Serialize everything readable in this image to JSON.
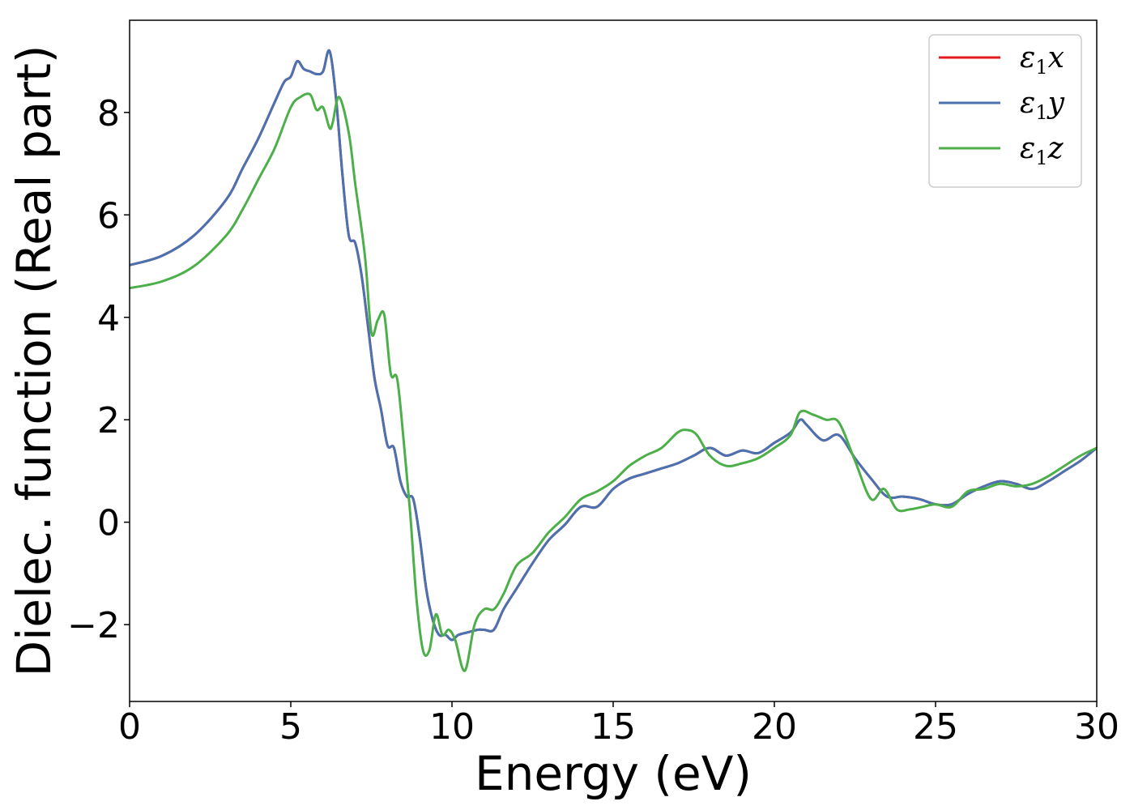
{
  "chart_data": {
    "type": "line",
    "title": "",
    "xlabel": "Energy (eV)",
    "ylabel": "Dielec. function (Real part)",
    "xlim": [
      0,
      30
    ],
    "ylim": [
      -3.5,
      9.8
    ],
    "xticks": [
      0,
      5,
      10,
      15,
      20,
      25,
      30
    ],
    "xtick_labels": [
      "0",
      "5",
      "10",
      "15",
      "20",
      "25",
      "30"
    ],
    "yticks": [
      -2,
      0,
      2,
      4,
      6,
      8
    ],
    "ytick_labels": [
      "−2",
      "0",
      "2",
      "4",
      "6",
      "8"
    ],
    "grid": false,
    "legend_position": "top-right",
    "series": [
      {
        "name": "ε1x",
        "legend_main": "ε",
        "legend_sub": "1",
        "legend_var": "x",
        "color": "#e41a1c",
        "x": [
          0,
          1,
          2,
          3,
          3.5,
          4,
          4.5,
          4.8,
          5.0,
          5.2,
          5.4,
          5.6,
          5.8,
          6.0,
          6.2,
          6.4,
          6.6,
          6.8,
          7.0,
          7.2,
          7.4,
          7.6,
          7.8,
          8.0,
          8.2,
          8.4,
          8.6,
          8.8,
          9.0,
          9.2,
          9.4,
          9.6,
          9.8,
          10.0,
          10.2,
          10.5,
          10.8,
          11.0,
          11.3,
          11.6,
          12.0,
          12.5,
          13.0,
          13.5,
          14.0,
          14.5,
          15.0,
          15.5,
          16.0,
          16.5,
          17.0,
          17.5,
          18.0,
          18.5,
          19.0,
          19.5,
          20.0,
          20.5,
          20.8,
          21.0,
          21.5,
          22.0,
          22.5,
          23.0,
          23.5,
          24.0,
          24.5,
          25.0,
          25.5,
          26.0,
          26.5,
          27.0,
          27.5,
          28.0,
          28.5,
          29.0,
          29.5,
          30.0
        ],
        "y": [
          5.02,
          5.2,
          5.6,
          6.3,
          6.9,
          7.5,
          8.2,
          8.6,
          8.7,
          9.0,
          8.85,
          8.8,
          8.75,
          8.8,
          9.2,
          8.3,
          6.8,
          5.6,
          5.45,
          4.8,
          3.8,
          2.8,
          2.2,
          1.5,
          1.45,
          0.8,
          0.5,
          0.45,
          -0.3,
          -1.3,
          -1.9,
          -2.2,
          -2.2,
          -2.3,
          -2.2,
          -2.15,
          -2.1,
          -2.1,
          -2.1,
          -1.7,
          -1.3,
          -0.8,
          -0.35,
          -0.05,
          0.3,
          0.3,
          0.65,
          0.85,
          0.95,
          1.05,
          1.15,
          1.3,
          1.45,
          1.3,
          1.4,
          1.35,
          1.55,
          1.75,
          2.0,
          1.9,
          1.6,
          1.7,
          1.25,
          0.85,
          0.5,
          0.5,
          0.45,
          0.35,
          0.35,
          0.55,
          0.7,
          0.8,
          0.75,
          0.65,
          0.8,
          1.0,
          1.2,
          1.45
        ]
      },
      {
        "name": "ε1y",
        "legend_main": "ε",
        "legend_sub": "1",
        "legend_var": "y",
        "color": "#4a72b0",
        "x": [
          0,
          1,
          2,
          3,
          3.5,
          4,
          4.5,
          4.8,
          5.0,
          5.2,
          5.4,
          5.6,
          5.8,
          6.0,
          6.2,
          6.4,
          6.6,
          6.8,
          7.0,
          7.2,
          7.4,
          7.6,
          7.8,
          8.0,
          8.2,
          8.4,
          8.6,
          8.8,
          9.0,
          9.2,
          9.4,
          9.6,
          9.8,
          10.0,
          10.2,
          10.5,
          10.8,
          11.0,
          11.3,
          11.6,
          12.0,
          12.5,
          13.0,
          13.5,
          14.0,
          14.5,
          15.0,
          15.5,
          16.0,
          16.5,
          17.0,
          17.5,
          18.0,
          18.5,
          19.0,
          19.5,
          20.0,
          20.5,
          20.8,
          21.0,
          21.5,
          22.0,
          22.5,
          23.0,
          23.5,
          24.0,
          24.5,
          25.0,
          25.5,
          26.0,
          26.5,
          27.0,
          27.5,
          28.0,
          28.5,
          29.0,
          29.5,
          30.0
        ],
        "y": [
          5.02,
          5.2,
          5.6,
          6.3,
          6.9,
          7.5,
          8.2,
          8.6,
          8.7,
          9.0,
          8.85,
          8.8,
          8.75,
          8.8,
          9.2,
          8.3,
          6.8,
          5.6,
          5.45,
          4.8,
          3.8,
          2.8,
          2.2,
          1.5,
          1.45,
          0.8,
          0.5,
          0.45,
          -0.3,
          -1.3,
          -1.9,
          -2.2,
          -2.2,
          -2.3,
          -2.2,
          -2.15,
          -2.1,
          -2.1,
          -2.1,
          -1.7,
          -1.3,
          -0.8,
          -0.35,
          -0.05,
          0.3,
          0.3,
          0.65,
          0.85,
          0.95,
          1.05,
          1.15,
          1.3,
          1.45,
          1.3,
          1.4,
          1.35,
          1.55,
          1.75,
          2.0,
          1.9,
          1.6,
          1.7,
          1.25,
          0.85,
          0.5,
          0.5,
          0.45,
          0.35,
          0.35,
          0.55,
          0.7,
          0.8,
          0.75,
          0.65,
          0.8,
          1.0,
          1.2,
          1.45
        ]
      },
      {
        "name": "ε1z",
        "legend_main": "ε",
        "legend_sub": "1",
        "legend_var": "z",
        "color": "#4daf4a",
        "x": [
          0,
          1,
          2,
          3,
          3.5,
          4,
          4.5,
          5.0,
          5.3,
          5.6,
          5.8,
          6.0,
          6.2,
          6.3,
          6.5,
          6.8,
          7.0,
          7.3,
          7.5,
          7.7,
          7.9,
          8.1,
          8.3,
          8.5,
          8.7,
          8.9,
          9.1,
          9.3,
          9.5,
          9.7,
          9.9,
          10.1,
          10.4,
          10.7,
          11.0,
          11.3,
          11.6,
          12.0,
          12.5,
          13.0,
          13.5,
          14.0,
          14.5,
          15.0,
          15.5,
          16.0,
          16.5,
          17.0,
          17.3,
          17.6,
          18.0,
          18.5,
          19.0,
          19.5,
          20.0,
          20.5,
          20.8,
          21.2,
          21.6,
          22.0,
          22.5,
          23.0,
          23.4,
          23.8,
          24.2,
          24.6,
          25.0,
          25.5,
          26.0,
          26.5,
          27.0,
          27.5,
          28.0,
          28.5,
          29.0,
          29.5,
          30.0
        ],
        "y": [
          4.57,
          4.7,
          5.0,
          5.6,
          6.1,
          6.7,
          7.3,
          8.1,
          8.3,
          8.35,
          8.05,
          8.1,
          7.7,
          7.8,
          8.3,
          7.6,
          6.6,
          5.2,
          3.7,
          3.95,
          4.05,
          2.9,
          2.8,
          1.6,
          0.2,
          -1.5,
          -2.5,
          -2.5,
          -1.8,
          -2.2,
          -2.1,
          -2.3,
          -2.9,
          -2.0,
          -1.7,
          -1.7,
          -1.4,
          -0.85,
          -0.6,
          -0.2,
          0.1,
          0.45,
          0.6,
          0.8,
          1.1,
          1.3,
          1.45,
          1.75,
          1.8,
          1.7,
          1.3,
          1.1,
          1.15,
          1.25,
          1.45,
          1.7,
          2.15,
          2.1,
          2.0,
          1.95,
          1.2,
          0.45,
          0.65,
          0.25,
          0.25,
          0.3,
          0.35,
          0.3,
          0.6,
          0.65,
          0.75,
          0.7,
          0.75,
          0.9,
          1.1,
          1.3,
          1.45
        ]
      }
    ]
  }
}
